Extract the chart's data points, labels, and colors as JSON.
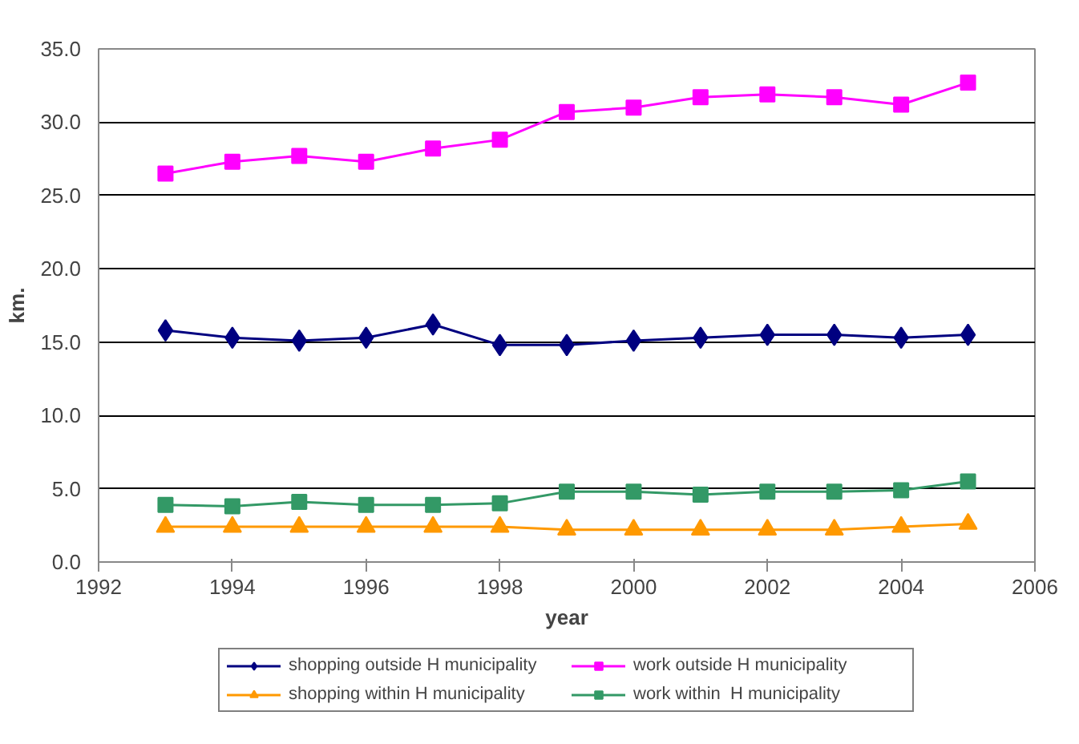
{
  "chart_data": {
    "type": "line",
    "xlabel": "year",
    "ylabel": "km.",
    "x": [
      1993,
      1994,
      1995,
      1996,
      1997,
      1998,
      1999,
      2000,
      2001,
      2002,
      2003,
      2004,
      2005
    ],
    "xlim": [
      1992,
      2006
    ],
    "xticks": [
      1992,
      1994,
      1996,
      1998,
      2000,
      2002,
      2004,
      2006
    ],
    "ylim": [
      0,
      35
    ],
    "yticks": [
      {
        "value": 0,
        "label": "0.0"
      },
      {
        "value": 5,
        "label": "5.0"
      },
      {
        "value": 10,
        "label": "10.0"
      },
      {
        "value": 15,
        "label": "15.0"
      },
      {
        "value": 20,
        "label": "20.0"
      },
      {
        "value": 25,
        "label": "25.0"
      },
      {
        "value": 30,
        "label": "30.0"
      },
      {
        "value": 35,
        "label": "35.0"
      }
    ],
    "grid": "y",
    "legend": "bottom",
    "line_style": "solid",
    "series": [
      {
        "name": "shopping outside H municipality",
        "color": "#000080",
        "marker": "diamond",
        "values": [
          15.8,
          15.3,
          15.1,
          15.3,
          16.2,
          14.8,
          14.8,
          15.1,
          15.3,
          15.5,
          15.5,
          15.3,
          15.5
        ]
      },
      {
        "name": "work outside H municipality",
        "color": "#ff00ff",
        "marker": "square",
        "values": [
          26.5,
          27.3,
          27.7,
          27.3,
          28.2,
          28.8,
          30.7,
          31.0,
          31.7,
          31.9,
          31.7,
          31.2,
          32.7
        ]
      },
      {
        "name": "shopping within H municipality",
        "color": "#ff9900",
        "marker": "triangle",
        "values": [
          2.4,
          2.4,
          2.4,
          2.4,
          2.4,
          2.4,
          2.2,
          2.2,
          2.2,
          2.2,
          2.2,
          2.4,
          2.6
        ]
      },
      {
        "name": "work within  H municipality",
        "color": "#339966",
        "marker": "square",
        "values": [
          3.9,
          3.8,
          4.1,
          3.9,
          3.9,
          4.0,
          4.8,
          4.8,
          4.6,
          4.8,
          4.8,
          4.9,
          5.5
        ]
      }
    ]
  }
}
